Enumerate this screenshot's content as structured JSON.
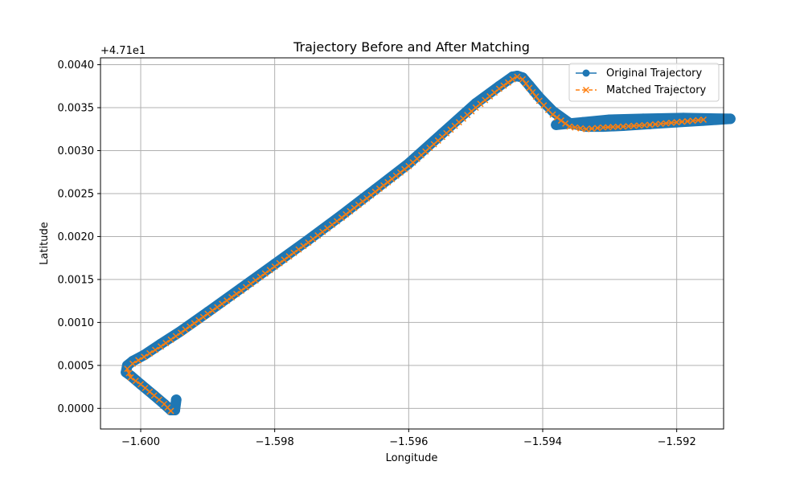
{
  "chart_data": {
    "type": "line",
    "title": "Trajectory Before and After Matching",
    "xlabel": "Longitude",
    "ylabel": "Latitude",
    "y_offset_label": "+4.71e1",
    "xlim": [
      -1.6006,
      -1.5913
    ],
    "ylim": [
      -0.00024,
      0.00408
    ],
    "xticks": [
      -1.6,
      -1.598,
      -1.596,
      -1.594,
      -1.592
    ],
    "xtick_labels": [
      "−1.600",
      "−1.598",
      "−1.596",
      "−1.594",
      "−1.592"
    ],
    "yticks": [
      0.0,
      0.0005,
      0.001,
      0.0015,
      0.002,
      0.0025,
      0.003,
      0.0035,
      0.004
    ],
    "ytick_labels": [
      "0.0000",
      "0.0005",
      "0.0010",
      "0.0015",
      "0.0020",
      "0.0025",
      "0.0030",
      "0.0035",
      "0.0040"
    ],
    "grid": true,
    "legend_position": "top-right",
    "series": [
      {
        "name": "Original Trajectory",
        "color": "#1f77b4",
        "marker": "circle",
        "linestyle": "solid",
        "x": [
          -1.59947,
          -1.59949,
          -1.59955,
          -1.59965,
          -1.5998,
          -1.6,
          -1.60015,
          -1.60022,
          -1.6002,
          -1.60012,
          -1.59995,
          -1.5997,
          -1.5994,
          -1.599,
          -1.5985,
          -1.598,
          -1.5975,
          -1.597,
          -1.5965,
          -1.596,
          -1.5955,
          -1.595,
          -1.59465,
          -1.59445,
          -1.59438,
          -1.5943,
          -1.5942,
          -1.59405,
          -1.59385,
          -1.5936,
          -1.59335,
          -1.5931,
          -1.5928,
          -1.5924,
          -1.592,
          -1.5916,
          -1.5912,
          -1.5919,
          -1.5925,
          -1.593,
          -1.5934,
          -1.5938
        ],
        "y": [
          0.0001,
          -2e-05,
          -2e-05,
          5e-05,
          0.00015,
          0.00028,
          0.00038,
          0.00042,
          0.0005,
          0.00055,
          0.00062,
          0.00075,
          0.0009,
          0.00112,
          0.0014,
          0.00168,
          0.00196,
          0.00225,
          0.00255,
          0.00285,
          0.0032,
          0.00355,
          0.00375,
          0.00386,
          0.00387,
          0.00385,
          0.00376,
          0.00362,
          0.00346,
          0.00332,
          0.00328,
          0.00328,
          0.00329,
          0.00331,
          0.00333,
          0.00335,
          0.00337,
          0.00338,
          0.00337,
          0.00336,
          0.00333,
          0.0033
        ]
      },
      {
        "name": "Matched Trajectory",
        "color": "#ff7f0e",
        "marker": "x",
        "linestyle": "dashed",
        "x": [
          -1.59955,
          -1.59965,
          -1.5998,
          -1.6,
          -1.60015,
          -1.6002,
          -1.60012,
          -1.59995,
          -1.5997,
          -1.5994,
          -1.599,
          -1.5985,
          -1.598,
          -1.5975,
          -1.597,
          -1.5965,
          -1.596,
          -1.5955,
          -1.595,
          -1.59465,
          -1.59445,
          -1.59438,
          -1.5943,
          -1.5942,
          -1.59405,
          -1.59385,
          -1.5936,
          -1.59335,
          -1.5931,
          -1.5928,
          -1.5924,
          -1.592,
          -1.5916
        ],
        "y": [
          -3e-05,
          5e-05,
          0.00015,
          0.00028,
          0.00036,
          0.00046,
          0.00052,
          0.0006,
          0.00072,
          0.00088,
          0.0011,
          0.00137,
          0.00165,
          0.00193,
          0.00222,
          0.00252,
          0.00282,
          0.00316,
          0.0035,
          0.00372,
          0.00383,
          0.00386,
          0.00383,
          0.00373,
          0.00358,
          0.00342,
          0.00328,
          0.00325,
          0.00327,
          0.00328,
          0.0033,
          0.00333,
          0.00336
        ]
      }
    ]
  }
}
